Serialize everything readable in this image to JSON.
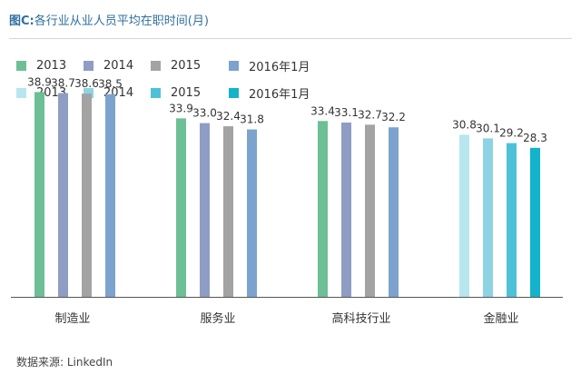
{
  "title": {
    "prefix": "图C:",
    "text": "各行业从业人员平均在职时间(月)"
  },
  "source": "数据来源: LinkedIn",
  "legend_rows": [
    {
      "items": [
        {
          "label": "2013",
          "color": "#6dbf95"
        },
        {
          "label": "2014",
          "color": "#8f9dc4"
        },
        {
          "label": "2015",
          "color": "#a3a3a3"
        },
        {
          "label": "2016年1月",
          "color": "#7ca3cd"
        }
      ]
    },
    {
      "items": [
        {
          "label": "2013",
          "color": "#b8e6ee"
        },
        {
          "label": "2014",
          "color": "#8dd3e4"
        },
        {
          "label": "2015",
          "color": "#4ec1d9"
        },
        {
          "label": "2016年1月",
          "color": "#13b3cc"
        }
      ]
    }
  ],
  "chart_data": {
    "type": "bar",
    "categories": [
      "制造业",
      "服务业",
      "高科技行业",
      "金融业"
    ],
    "series_labels": [
      "2013",
      "2014",
      "2015",
      "2016年1月"
    ],
    "values": [
      [
        38.9,
        38.7,
        38.6,
        38.5
      ],
      [
        33.9,
        33.0,
        32.4,
        31.8
      ],
      [
        33.4,
        33.1,
        32.7,
        32.2
      ],
      [
        30.8,
        30.1,
        29.2,
        28.3
      ]
    ],
    "colors": [
      [
        "#6dbf95",
        "#8f9dc4",
        "#a3a3a3",
        "#7ca3cd"
      ],
      [
        "#6dbf95",
        "#8f9dc4",
        "#a3a3a3",
        "#7ca3cd"
      ],
      [
        "#6dbf95",
        "#8f9dc4",
        "#a3a3a3",
        "#7ca3cd"
      ],
      [
        "#b8e6ee",
        "#8dd3e4",
        "#4ec1d9",
        "#13b3cc"
      ]
    ],
    "ylim": [
      0,
      40
    ],
    "grid": false,
    "legend_position": "top-left"
  }
}
